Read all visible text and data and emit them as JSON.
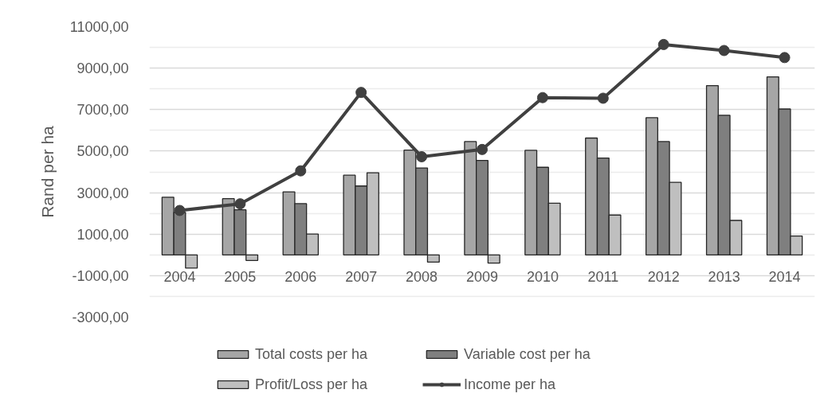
{
  "chart_data": {
    "type": "bar",
    "ylabel": "Rand per ha",
    "categories": [
      "2004",
      "2005",
      "2006",
      "2007",
      "2008",
      "2009",
      "2010",
      "2011",
      "2012",
      "2013",
      "2014"
    ],
    "series": [
      {
        "name": "Total costs per ha",
        "color": "#a6a6a6",
        "values": [
          2780,
          2710,
          3040,
          3840,
          5050,
          5460,
          5040,
          5630,
          6610,
          8160,
          8580
        ]
      },
      {
        "name": "Variable cost per ha",
        "color": "#7f7f7f",
        "values": [
          2050,
          2170,
          2470,
          3320,
          4190,
          4550,
          4220,
          4670,
          5460,
          6730,
          7030
        ]
      },
      {
        "name": "Profit/Loss per ha",
        "color": "#bfbfbf",
        "values": [
          -640,
          -270,
          1000,
          3960,
          -350,
          -400,
          2490,
          1920,
          3500,
          1660,
          910
        ]
      },
      {
        "name": "Income per ha",
        "type": "line",
        "color": "#404040",
        "values": [
          2140,
          2460,
          4050,
          7830,
          4730,
          5080,
          7580,
          7550,
          10140,
          9850,
          9510
        ]
      }
    ],
    "ylim": [
      -3000,
      11000
    ],
    "yticks": [
      {
        "value": -3000,
        "label": "-3000,00"
      },
      {
        "value": -1000,
        "label": "-1000,00"
      },
      {
        "value": 1000,
        "label": "1000,00"
      },
      {
        "value": 3000,
        "label": "3000,00"
      },
      {
        "value": 5000,
        "label": "5000,00"
      },
      {
        "value": 7000,
        "label": "7000,00"
      },
      {
        "value": 9000,
        "label": "9000,00"
      },
      {
        "value": 11000,
        "label": "11000,00"
      }
    ],
    "grid": "y",
    "legend": "bottom",
    "marker": "circle",
    "line_style": "solid"
  }
}
